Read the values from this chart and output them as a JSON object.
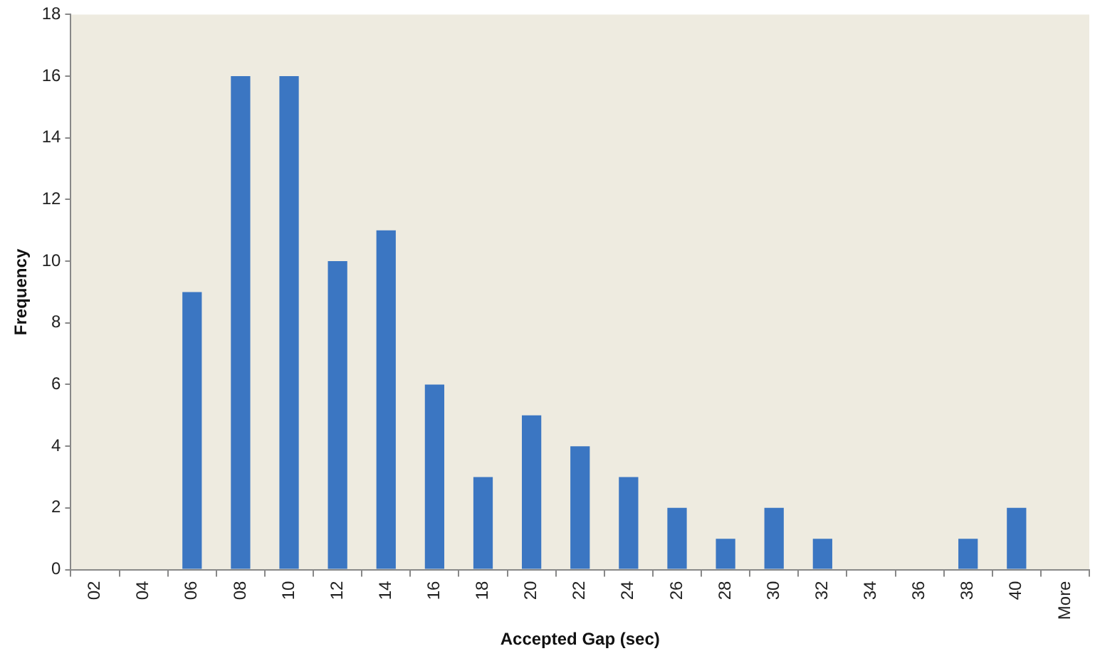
{
  "chart_data": {
    "type": "bar",
    "xlabel": "Accepted Gap (sec)",
    "ylabel": "Frequency",
    "categories": [
      "02",
      "04",
      "06",
      "08",
      "10",
      "12",
      "14",
      "16",
      "18",
      "20",
      "22",
      "24",
      "26",
      "28",
      "30",
      "32",
      "34",
      "36",
      "38",
      "40",
      "More"
    ],
    "values": [
      0,
      0,
      9,
      16,
      16,
      10,
      11,
      6,
      3,
      5,
      4,
      3,
      2,
      1,
      2,
      1,
      0,
      0,
      1,
      2,
      0
    ],
    "color": "#3b76c2",
    "ylim": [
      0,
      18
    ],
    "yticks": [
      0,
      2,
      4,
      6,
      8,
      10,
      12,
      14,
      16,
      18
    ],
    "grid": false
  }
}
